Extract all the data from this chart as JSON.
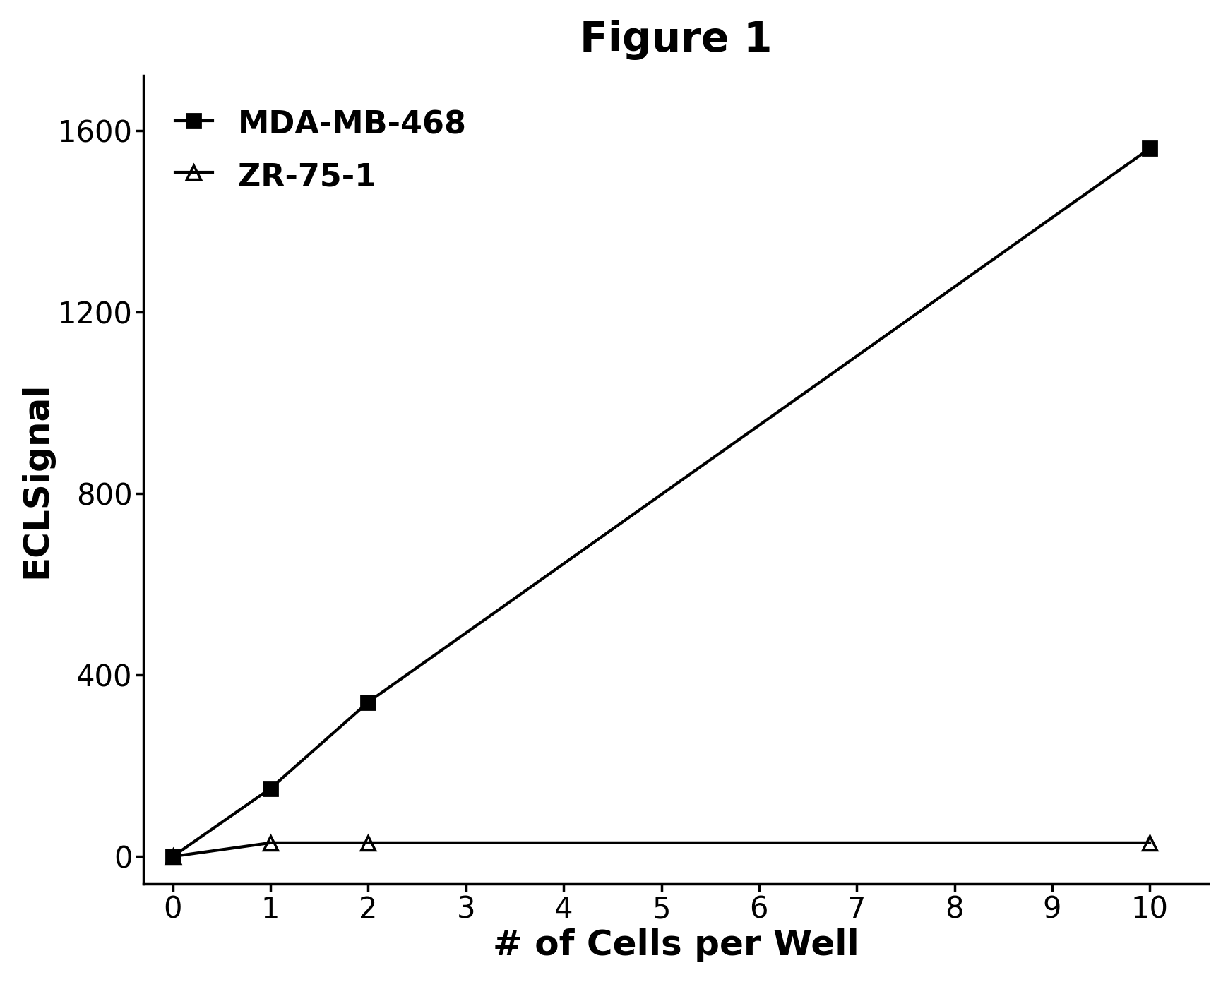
{
  "title": "Figure 1",
  "xlabel": "# of Cells per Well",
  "ylabel": "ECLSignal",
  "series": [
    {
      "label": "MDA-MB-468",
      "x": [
        0,
        1,
        2,
        10
      ],
      "y": [
        0,
        150,
        340,
        1560
      ],
      "marker": "s",
      "marker_size": 14,
      "marker_facecolor": "#000000",
      "marker_edgecolor": "#000000",
      "linecolor": "#000000",
      "linewidth": 3.0,
      "fillstyle": "full"
    },
    {
      "label": "ZR-75-1",
      "x": [
        0,
        1,
        2,
        10
      ],
      "y": [
        0,
        30,
        30,
        30
      ],
      "marker": "^",
      "marker_size": 14,
      "marker_facecolor": "#ffffff",
      "marker_edgecolor": "#000000",
      "linecolor": "#000000",
      "linewidth": 3.0,
      "fillstyle": "none"
    }
  ],
  "xlim": [
    -0.3,
    10.6
  ],
  "ylim": [
    -60,
    1720
  ],
  "yticks": [
    0,
    400,
    800,
    1200,
    1600
  ],
  "xticks": [
    0,
    1,
    2,
    3,
    4,
    5,
    6,
    7,
    8,
    9,
    10
  ],
  "title_fontsize": 42,
  "title_fontweight": "bold",
  "axis_label_fontsize": 36,
  "tick_fontsize": 30,
  "legend_fontsize": 32,
  "background_color": "#ffffff",
  "spine_linewidth": 2.5
}
